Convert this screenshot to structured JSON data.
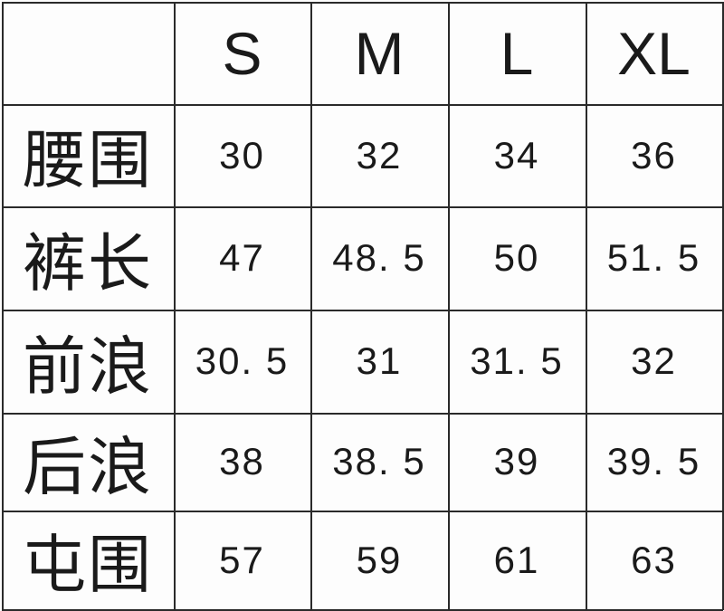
{
  "table": {
    "columns": [
      "",
      "S",
      "M",
      "L",
      "XL"
    ],
    "rows": [
      {
        "label": "腰围",
        "values": [
          "30",
          "32",
          "34",
          "36"
        ]
      },
      {
        "label": "裤长",
        "values": [
          "47",
          "48. 5",
          "50",
          "51. 5"
        ]
      },
      {
        "label": "前浪",
        "values": [
          "30. 5",
          "31",
          "31. 5",
          "32"
        ]
      },
      {
        "label": "后浪",
        "values": [
          "38",
          "38. 5",
          "39",
          "39. 5"
        ]
      },
      {
        "label": "屯围",
        "values": [
          "57",
          "59",
          "61",
          "63"
        ]
      }
    ]
  }
}
